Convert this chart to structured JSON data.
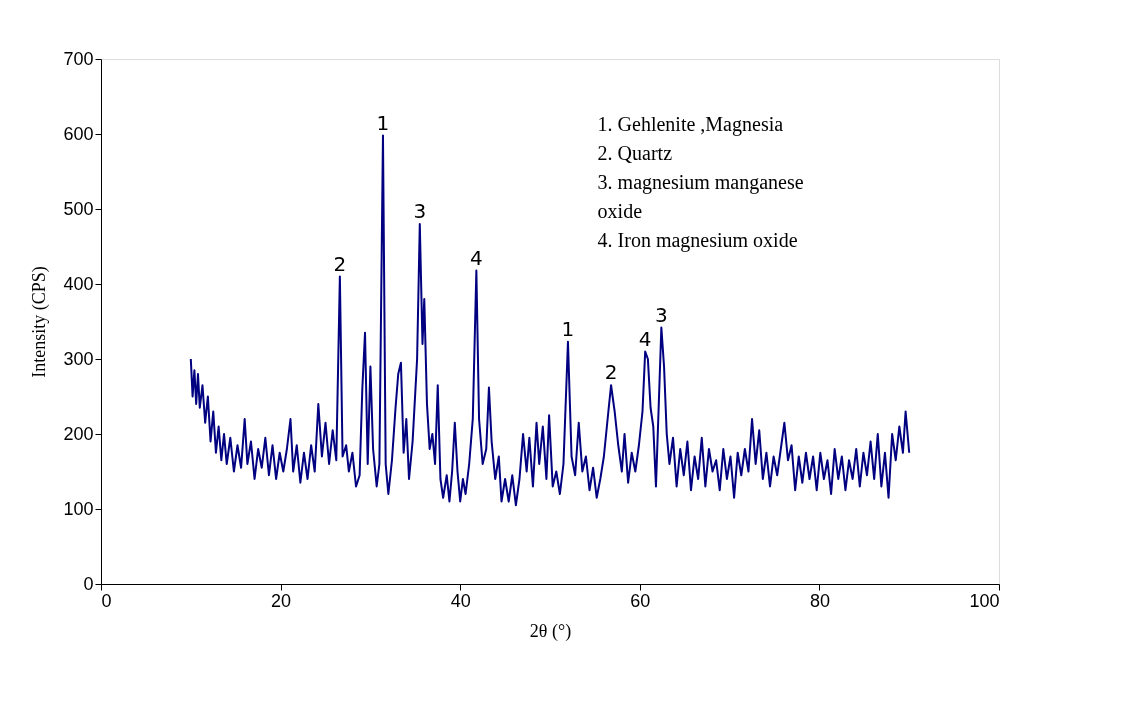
{
  "chart_data": {
    "type": "line",
    "xlabel": "2θ (°)",
    "ylabel": "Intensity (CPS)",
    "xlim": [
      0,
      100
    ],
    "xticks": [
      0,
      20,
      40,
      60,
      80,
      100
    ],
    "ylim": [
      0,
      700
    ],
    "yticks": [
      0,
      100,
      200,
      300,
      400,
      500,
      600,
      700
    ],
    "grid": false,
    "marker": "none",
    "line_style": "solid",
    "series": [
      {
        "color": "#000080",
        "x": [
          10.0,
          10.2,
          10.4,
          10.6,
          10.8,
          11.0,
          11.3,
          11.6,
          11.9,
          12.2,
          12.5,
          12.8,
          13.1,
          13.4,
          13.7,
          14.0,
          14.4,
          14.8,
          15.2,
          15.6,
          16.0,
          16.3,
          16.7,
          17.1,
          17.5,
          17.9,
          18.3,
          18.7,
          19.1,
          19.5,
          19.9,
          20.3,
          20.7,
          21.1,
          21.4,
          21.8,
          22.2,
          22.6,
          23.0,
          23.4,
          23.8,
          24.2,
          24.6,
          25.0,
          25.4,
          25.8,
          26.2,
          26.6,
          26.9,
          27.3,
          27.6,
          28.0,
          28.4,
          28.8,
          29.1,
          29.4,
          29.7,
          30.0,
          30.3,
          30.7,
          31.0,
          31.4,
          31.7,
          32.0,
          32.4,
          32.8,
          33.1,
          33.4,
          33.7,
          34.0,
          34.3,
          34.7,
          35.2,
          35.5,
          35.8,
          36.0,
          36.3,
          36.6,
          36.9,
          37.2,
          37.5,
          37.8,
          38.1,
          38.5,
          38.8,
          39.1,
          39.4,
          39.7,
          40.0,
          40.3,
          40.6,
          41.0,
          41.4,
          41.8,
          42.1,
          42.5,
          42.9,
          43.2,
          43.5,
          43.9,
          44.3,
          44.6,
          45.0,
          45.4,
          45.8,
          46.2,
          46.6,
          47.0,
          47.4,
          47.7,
          48.1,
          48.5,
          48.8,
          49.2,
          49.6,
          49.9,
          50.3,
          50.7,
          51.1,
          51.5,
          52.0,
          52.4,
          52.8,
          53.2,
          53.6,
          54.0,
          54.4,
          54.8,
          55.2,
          55.6,
          56.0,
          56.5,
          56.8,
          57.2,
          57.6,
          58.0,
          58.3,
          58.7,
          59.1,
          59.5,
          59.9,
          60.3,
          60.6,
          60.9,
          61.2,
          61.5,
          61.8,
          62.1,
          62.4,
          62.7,
          63.0,
          63.3,
          63.7,
          64.1,
          64.5,
          64.9,
          65.3,
          65.7,
          66.1,
          66.5,
          66.9,
          67.3,
          67.7,
          68.1,
          68.5,
          68.9,
          69.3,
          69.7,
          70.1,
          70.5,
          70.9,
          71.3,
          71.7,
          72.1,
          72.5,
          72.9,
          73.3,
          73.7,
          74.1,
          74.5,
          74.9,
          75.3,
          75.7,
          76.1,
          76.5,
          76.9,
          77.3,
          77.7,
          78.1,
          78.5,
          78.9,
          79.3,
          79.7,
          80.1,
          80.5,
          80.9,
          81.3,
          81.7,
          82.1,
          82.5,
          82.9,
          83.3,
          83.7,
          84.1,
          84.5,
          84.9,
          85.3,
          85.7,
          86.1,
          86.5,
          86.9,
          87.3,
          87.7,
          88.1,
          88.5,
          88.9,
          89.3,
          89.6,
          90.0
        ],
        "values": [
          300,
          250,
          285,
          240,
          280,
          235,
          265,
          215,
          250,
          190,
          230,
          175,
          210,
          165,
          200,
          160,
          195,
          150,
          185,
          155,
          220,
          160,
          190,
          140,
          180,
          155,
          195,
          145,
          185,
          140,
          175,
          150,
          180,
          220,
          150,
          185,
          135,
          175,
          140,
          185,
          150,
          240,
          170,
          215,
          160,
          205,
          165,
          410,
          170,
          185,
          150,
          175,
          130,
          145,
          260,
          335,
          160,
          290,
          180,
          130,
          160,
          598,
          160,
          120,
          165,
          235,
          280,
          295,
          175,
          220,
          140,
          190,
          300,
          480,
          320,
          380,
          240,
          180,
          200,
          160,
          265,
          140,
          115,
          145,
          110,
          150,
          215,
          150,
          110,
          140,
          120,
          160,
          220,
          418,
          220,
          160,
          180,
          262,
          190,
          140,
          170,
          110,
          140,
          110,
          145,
          105,
          140,
          200,
          150,
          195,
          130,
          215,
          160,
          210,
          140,
          225,
          130,
          150,
          120,
          160,
          323,
          170,
          145,
          215,
          150,
          170,
          125,
          155,
          115,
          140,
          170,
          230,
          265,
          230,
          185,
          150,
          200,
          135,
          175,
          150,
          185,
          230,
          310,
          300,
          235,
          210,
          130,
          235,
          342,
          290,
          200,
          160,
          195,
          130,
          180,
          145,
          190,
          125,
          170,
          140,
          195,
          130,
          180,
          150,
          165,
          125,
          180,
          140,
          170,
          115,
          175,
          145,
          180,
          150,
          220,
          160,
          205,
          140,
          175,
          130,
          170,
          145,
          180,
          215,
          165,
          185,
          125,
          170,
          135,
          175,
          140,
          170,
          125,
          175,
          140,
          165,
          120,
          180,
          140,
          170,
          125,
          165,
          140,
          180,
          130,
          175,
          145,
          190,
          140,
          200,
          130,
          175,
          115,
          200,
          165,
          210,
          175,
          230,
          175
        ]
      }
    ],
    "annotations": [
      {
        "text": "2",
        "x": 26.6,
        "y": 410
      },
      {
        "text": "1",
        "x": 31.4,
        "y": 598
      },
      {
        "text": "3",
        "x": 35.5,
        "y": 480
      },
      {
        "text": "4",
        "x": 41.8,
        "y": 418
      },
      {
        "text": "1",
        "x": 52.0,
        "y": 323
      },
      {
        "text": "2",
        "x": 56.8,
        "y": 265
      },
      {
        "text": "4",
        "x": 60.6,
        "y": 310
      },
      {
        "text": "3",
        "x": 62.4,
        "y": 342
      },
      "1. Gehlenite ,Magnesia",
      "2. Quartz",
      "3. magnesium manganese oxide",
      "4. Iron magnesium oxide"
    ]
  }
}
